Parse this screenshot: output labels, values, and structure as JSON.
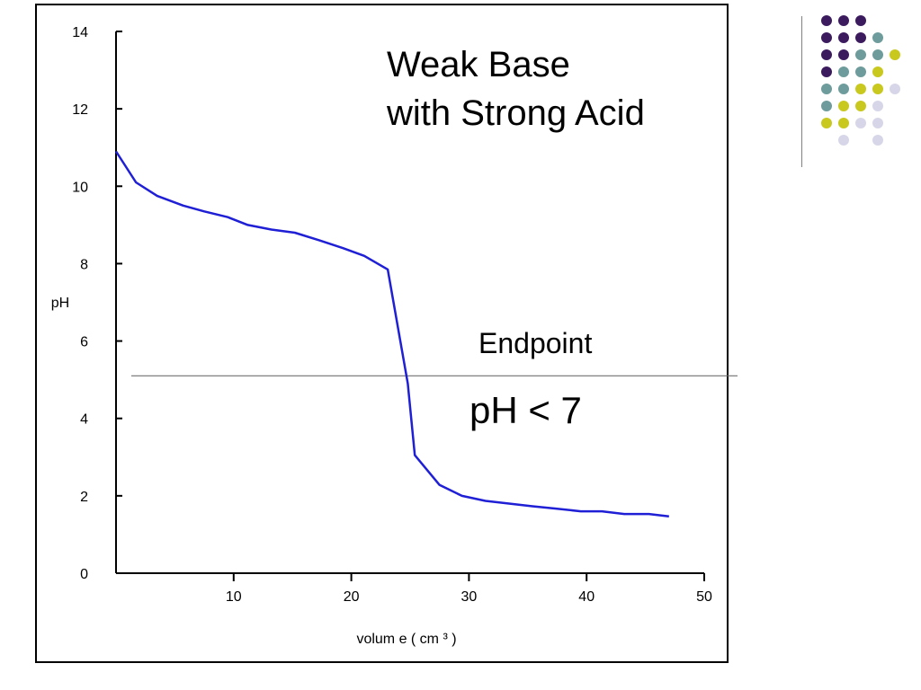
{
  "title_lines": [
    "Weak Base",
    "with Strong Acid"
  ],
  "annotations": {
    "endpoint": "Endpoint",
    "ph_condition": "pH < 7"
  },
  "chart_data": {
    "type": "line",
    "xlabel": "volum e ( cm ³ )",
    "ylabel": "pH",
    "xlim": [
      0,
      50
    ],
    "ylim": [
      0,
      14
    ],
    "x_ticks": [
      10,
      20,
      30,
      40,
      50
    ],
    "y_ticks": [
      0,
      2,
      4,
      6,
      8,
      10,
      12,
      14
    ],
    "grid": false,
    "series": [
      {
        "color": "#1f1fd6",
        "x": [
          0,
          1.7,
          3.5,
          5.7,
          7.5,
          9.5,
          11.2,
          13.2,
          15.2,
          17.3,
          19.3,
          21.1,
          23.1,
          24.8,
          25.4,
          27.5,
          29.4,
          31.4,
          33.4,
          35.4,
          37.4,
          39.5,
          41.3,
          43.2,
          45.3,
          47.0
        ],
        "y": [
          10.9,
          10.1,
          9.75,
          9.5,
          9.35,
          9.2,
          9.0,
          8.88,
          8.8,
          8.6,
          8.4,
          8.2,
          7.85,
          4.9,
          3.05,
          2.28,
          2.0,
          1.87,
          1.8,
          1.73,
          1.67,
          1.6,
          1.6,
          1.53,
          1.53,
          1.47
        ]
      }
    ],
    "reference_line": {
      "y": 5.1,
      "color": "#707070"
    }
  },
  "decoration": {
    "dot_colors": {
      "purple": "#3b1b5e",
      "teal": "#6e9b9b",
      "yellow": "#c8c81e",
      "lavender": "#d6d6e8"
    },
    "dot_grid": [
      [
        "purple",
        "purple",
        "purple",
        "",
        ""
      ],
      [
        "purple",
        "purple",
        "purple",
        "teal",
        ""
      ],
      [
        "purple",
        "purple",
        "teal",
        "teal",
        "yellow"
      ],
      [
        "purple",
        "teal",
        "teal",
        "yellow",
        ""
      ],
      [
        "teal",
        "teal",
        "yellow",
        "yellow",
        "lavender"
      ],
      [
        "teal",
        "yellow",
        "yellow",
        "lavender",
        ""
      ],
      [
        "yellow",
        "yellow",
        "lavender",
        "lavender",
        ""
      ],
      [
        "",
        "lavender",
        "",
        "lavender",
        ""
      ]
    ]
  }
}
